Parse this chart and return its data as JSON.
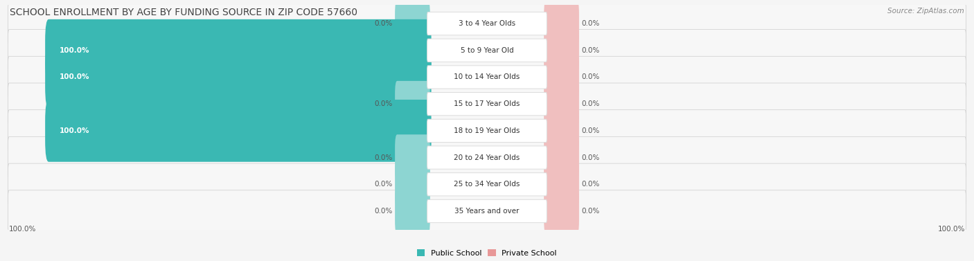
{
  "title": "School Enrollment by Age by Funding Source in Zip Code 57660",
  "source_text": "Source: ZipAtlas.com",
  "categories": [
    "3 to 4 Year Olds",
    "5 to 9 Year Old",
    "10 to 14 Year Olds",
    "15 to 17 Year Olds",
    "18 to 19 Year Olds",
    "20 to 24 Year Olds",
    "25 to 34 Year Olds",
    "35 Years and over"
  ],
  "public_values": [
    0.0,
    100.0,
    100.0,
    0.0,
    100.0,
    0.0,
    0.0,
    0.0
  ],
  "private_values": [
    0.0,
    0.0,
    0.0,
    0.0,
    0.0,
    0.0,
    0.0,
    0.0
  ],
  "public_color": "#3ab8b3",
  "public_color_light": "#8dd5d2",
  "private_color": "#e89898",
  "private_color_light": "#f0bfbf",
  "row_bg_even": "#f0f0f0",
  "row_bg_odd": "#e8e8e8",
  "label_box_color": "#ffffff",
  "label_box_edge": "#dddddd",
  "fig_bg": "#f5f5f5",
  "title_fontsize": 10,
  "label_fontsize": 7.5,
  "value_fontsize": 7.5,
  "legend_fontsize": 8,
  "bottom_left_label": "100.0%",
  "bottom_right_label": "100.0%"
}
